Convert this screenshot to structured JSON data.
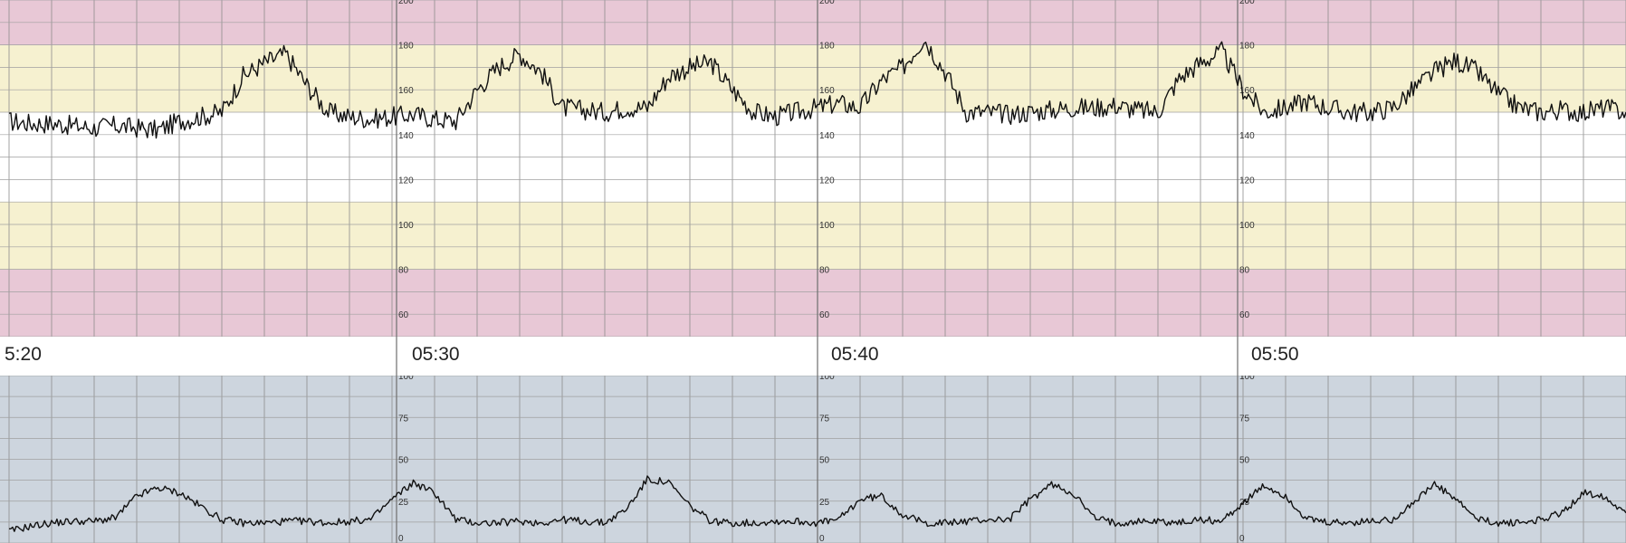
{
  "chart_data": [
    {
      "type": "line",
      "name_hint": "fetal-heart-rate",
      "ylim": [
        50,
        200
      ],
      "y_ticks": [
        60,
        80,
        100,
        120,
        140,
        160,
        180,
        200
      ],
      "zones": [
        {
          "from": 50,
          "to": 80,
          "color": "#e8c8d6"
        },
        {
          "from": 80,
          "to": 110,
          "color": "#f6f1d0"
        },
        {
          "from": 110,
          "to": 150,
          "color": "#ffffff"
        },
        {
          "from": 150,
          "to": 180,
          "color": "#f6f1d0"
        },
        {
          "from": 180,
          "to": 200,
          "color": "#e8c8d6"
        }
      ],
      "grid": true,
      "x_minutes": [
        0,
        0.5,
        1,
        1.5,
        2,
        2.5,
        3,
        3.5,
        4,
        4.5,
        5,
        5.5,
        6,
        6.5,
        7,
        7.5,
        8,
        8.5,
        9,
        9.5,
        10,
        10.5,
        11,
        11.5,
        12,
        12.5,
        13,
        13.5,
        14,
        14.5,
        15,
        15.5,
        16,
        16.5,
        17,
        17.5,
        18,
        18.5,
        19,
        19.5,
        20,
        20.5,
        21,
        21.5,
        22,
        22.5,
        23,
        23.5,
        24,
        24.5,
        25,
        25.5,
        26,
        26.5,
        27,
        27.5,
        28,
        28.5,
        29,
        29.5,
        30,
        30.5,
        31,
        31.5,
        32,
        32.5,
        33,
        33.5,
        34,
        34.5,
        35,
        35.5,
        36,
        36.5,
        37,
        37.5,
        38
      ],
      "y": [
        146,
        145,
        145,
        144,
        143,
        144,
        143,
        142,
        146,
        148,
        150,
        166,
        172,
        176,
        162,
        150,
        148,
        147,
        148,
        149,
        147,
        146,
        160,
        170,
        176,
        168,
        152,
        151,
        150,
        152,
        152,
        166,
        170,
        172,
        160,
        150,
        148,
        150,
        152,
        154,
        152,
        164,
        170,
        183,
        168,
        150,
        150,
        149,
        150,
        151,
        152,
        152,
        153,
        151,
        150,
        165,
        172,
        177,
        160,
        150,
        152,
        155,
        152,
        150,
        150,
        152,
        160,
        168,
        173,
        168,
        158,
        152,
        150,
        151,
        150,
        152,
        150
      ]
    },
    {
      "type": "line",
      "name_hint": "uterine-activity",
      "ylim": [
        0,
        100
      ],
      "y_ticks": [
        0,
        25,
        50,
        75,
        100
      ],
      "grid": true,
      "x_minutes": [
        0,
        0.5,
        1,
        1.5,
        2,
        2.5,
        3,
        3.5,
        4,
        4.5,
        5,
        5.5,
        6,
        6.5,
        7,
        7.5,
        8,
        8.5,
        9,
        9.5,
        10,
        10.5,
        11,
        11.5,
        12,
        12.5,
        13,
        13.5,
        14,
        14.5,
        15,
        15.5,
        16,
        16.5,
        17,
        17.5,
        18,
        18.5,
        19,
        19.5,
        20,
        20.5,
        21,
        21.5,
        22,
        22.5,
        23,
        23.5,
        24,
        24.5,
        25,
        25.5,
        26,
        26.5,
        27,
        27.5,
        28,
        28.5,
        29,
        29.5,
        30,
        30.5,
        31,
        31.5,
        32,
        32.5,
        33,
        33.5,
        34,
        34.5,
        35,
        35.5,
        36,
        36.5,
        37,
        37.5,
        38
      ],
      "y": [
        7,
        10,
        12,
        13,
        13,
        15,
        28,
        33,
        30,
        22,
        14,
        12,
        12,
        13,
        13,
        12,
        13,
        14,
        26,
        36,
        30,
        14,
        12,
        12,
        13,
        12,
        14,
        13,
        12,
        20,
        38,
        36,
        22,
        13,
        12,
        12,
        13,
        13,
        12,
        14,
        26,
        28,
        17,
        12,
        12,
        13,
        14,
        14,
        26,
        35,
        30,
        15,
        12,
        13,
        13,
        12,
        14,
        13,
        24,
        34,
        28,
        14,
        12,
        12,
        13,
        14,
        24,
        35,
        26,
        14,
        12,
        12,
        14,
        18,
        30,
        28,
        18
      ]
    }
  ],
  "time_labels": [
    "5:20",
    "05:30",
    "05:40",
    "05:50"
  ],
  "fhr_tick_labels": [
    "200",
    "180",
    "160",
    "140",
    "120",
    "100",
    "80",
    "60"
  ],
  "ua_tick_labels": [
    "100",
    "75",
    "50",
    "25",
    "0"
  ],
  "colors": {
    "ua_background": "#cdd5de",
    "grid": "#8c8c8c",
    "trace": "#111111"
  }
}
